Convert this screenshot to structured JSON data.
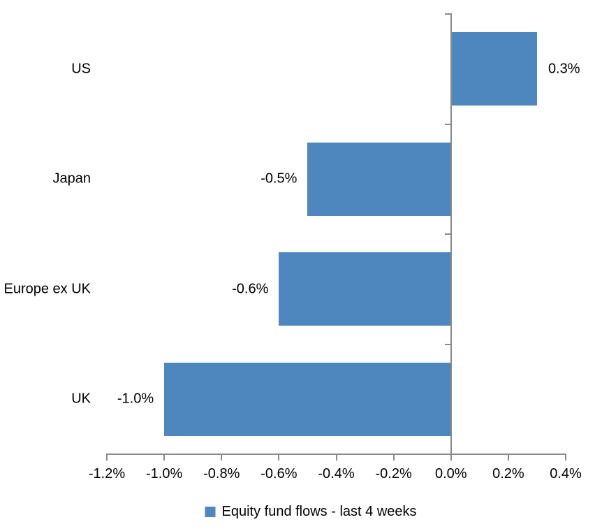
{
  "chart_data": {
    "type": "bar",
    "orientation": "horizontal",
    "title": "",
    "xlabel": "",
    "ylabel": "",
    "categories": [
      "US",
      "Japan",
      "Europe ex UK",
      "UK"
    ],
    "series": [
      {
        "name": "Equity fund flows - last 4 weeks",
        "values": [
          0.3,
          -0.5,
          -0.6,
          -1.0
        ],
        "data_labels": [
          "0.3%",
          "-0.5%",
          "-0.6%",
          "-1.0%"
        ]
      }
    ],
    "x_axis": {
      "min": -1.2,
      "max": 0.4,
      "step": 0.2,
      "tick_labels": [
        "-1.2%",
        "-1.0%",
        "-0.8%",
        "-0.6%",
        "-0.4%",
        "-0.2%",
        "0.0%",
        "0.2%",
        "0.4%"
      ]
    },
    "grid": false,
    "legend": {
      "position": "bottom",
      "marker": "square",
      "label": "Equity fund flows - last 4 weeks"
    },
    "colors": {
      "bar": "#4E86BE",
      "axis": "#8A8A8A",
      "text": "#000000",
      "background": "#FFFFFF"
    }
  }
}
